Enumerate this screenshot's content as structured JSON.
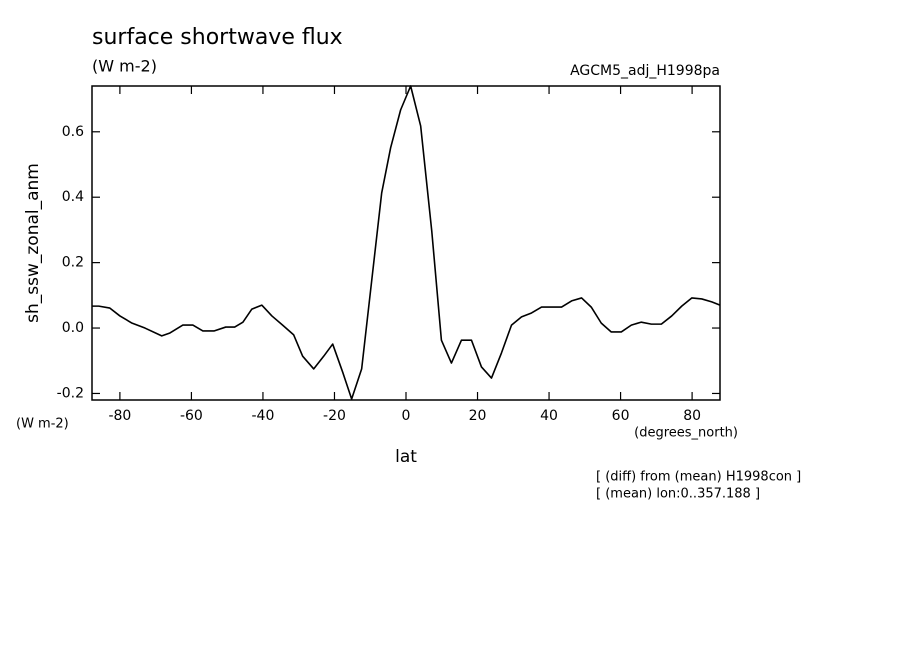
{
  "chart_data": {
    "type": "line",
    "title": "surface shortwave flux",
    "subtitle": "(W m-2)",
    "annotation_right": "AGCM5_adj_H1998pa",
    "ylabel": "sh_ssw_zonal_anm",
    "yunit": "(W m-2)",
    "xunit": "(degrees_north)",
    "xlabel": "lat",
    "notes": [
      "[ (diff) from (mean) H1998con ]",
      "[ (mean) lon:0..357.188 ]"
    ],
    "x": [
      -87.8,
      -85.9,
      -82.8,
      -80.0,
      -76.6,
      -73.0,
      -68.3,
      -66.0,
      -62.4,
      -59.6,
      -56.8,
      -53.7,
      -50.4,
      -47.9,
      -45.6,
      -43.1,
      -40.3,
      -37.5,
      -34.5,
      -31.4,
      -28.9,
      -25.8,
      -23.0,
      -20.5,
      -17.7,
      -15.2,
      -12.4,
      -9.6,
      -6.8,
      -4.3,
      -1.5,
      1.3,
      4.1,
      7.2,
      9.9,
      12.7,
      15.5,
      18.3,
      21.1,
      23.9,
      26.7,
      29.5,
      32.3,
      35.1,
      37.9,
      40.7,
      43.5,
      46.3,
      49.1,
      51.8,
      54.6,
      57.4,
      60.2,
      63.0,
      65.8,
      68.6,
      71.4,
      74.3,
      77.1,
      79.9,
      82.7,
      85.5,
      87.8
    ],
    "series": [
      {
        "name": "sh_ssw_zonal_anm",
        "color": "#000000",
        "values": [
          0.067,
          0.067,
          0.061,
          0.037,
          0.015,
          0.0,
          -0.024,
          -0.015,
          0.009,
          0.009,
          -0.009,
          -0.009,
          0.003,
          0.003,
          0.018,
          0.058,
          0.07,
          0.037,
          0.009,
          -0.021,
          -0.086,
          -0.125,
          -0.086,
          -0.049,
          -0.135,
          -0.217,
          -0.125,
          0.144,
          0.413,
          0.551,
          0.667,
          0.74,
          0.618,
          0.297,
          -0.037,
          -0.107,
          -0.037,
          -0.037,
          -0.119,
          -0.153,
          -0.076,
          0.009,
          0.034,
          0.046,
          0.064,
          0.064,
          0.064,
          0.083,
          0.092,
          0.064,
          0.015,
          -0.012,
          -0.012,
          0.009,
          0.018,
          0.012,
          0.012,
          0.037,
          0.067,
          0.092,
          0.089,
          0.08,
          0.07
        ]
      }
    ],
    "xlim": [
      -87.8,
      87.8
    ],
    "xticks": [
      -80,
      -60,
      -40,
      -20,
      0,
      20,
      40,
      60,
      80
    ],
    "ylim": [
      -0.22,
      0.74
    ],
    "yticks": [
      -0.2,
      {
        "value": 0,
        "label": "0.0"
      },
      0.2,
      0.4,
      0.6
    ]
  }
}
